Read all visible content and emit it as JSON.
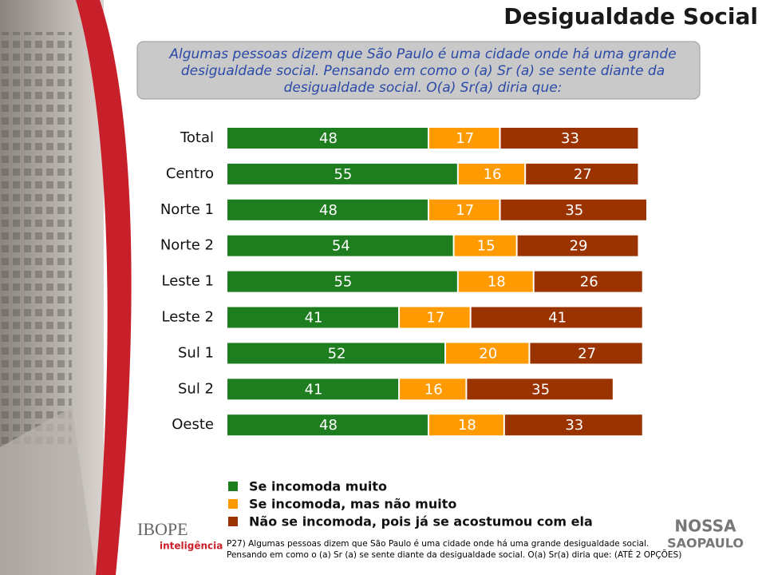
{
  "chart_data": {
    "type": "stacked-bar",
    "title": "Desigualdade Social",
    "subtitle": "Algumas pessoas dizem que São Paulo é uma cidade onde há uma grande desigualdade social. Pensando em como o (a) Sr (a) se sente diante da desigualdade social. O(a) Sr(a) diria que:",
    "categories": [
      "Total",
      "Centro",
      "Norte 1",
      "Norte 2",
      "Leste 1",
      "Leste 2",
      "Sul 1",
      "Sul 2",
      "Oeste"
    ],
    "series": [
      {
        "name": "Se incomoda muito",
        "color": "#1e7d1e",
        "values": [
          48,
          55,
          48,
          54,
          55,
          41,
          52,
          41,
          48
        ]
      },
      {
        "name": "Se incomoda, mas não muito",
        "color": "#ff9a00",
        "values": [
          17,
          16,
          17,
          15,
          18,
          17,
          20,
          16,
          18
        ]
      },
      {
        "name": "Não se incomoda, pois já se acostumou com ela",
        "color": "#9a3300",
        "values": [
          33,
          27,
          35,
          29,
          26,
          41,
          27,
          35,
          33
        ]
      }
    ],
    "xlim": [
      0,
      100
    ],
    "annotation": "P27) Algumas pessoas dizem que São Paulo é uma cidade onde há uma grande desigualdade social. Pensando em como o (a) Sr (a) se sente diante da desigualdade social. O(a) Sr(a) diria que: (ATÉ 2 OPÇÕES)"
  },
  "logos": {
    "left": [
      "IBOPE",
      "inteligência"
    ],
    "right": [
      "NOSSA",
      "SAOPAULO"
    ]
  }
}
